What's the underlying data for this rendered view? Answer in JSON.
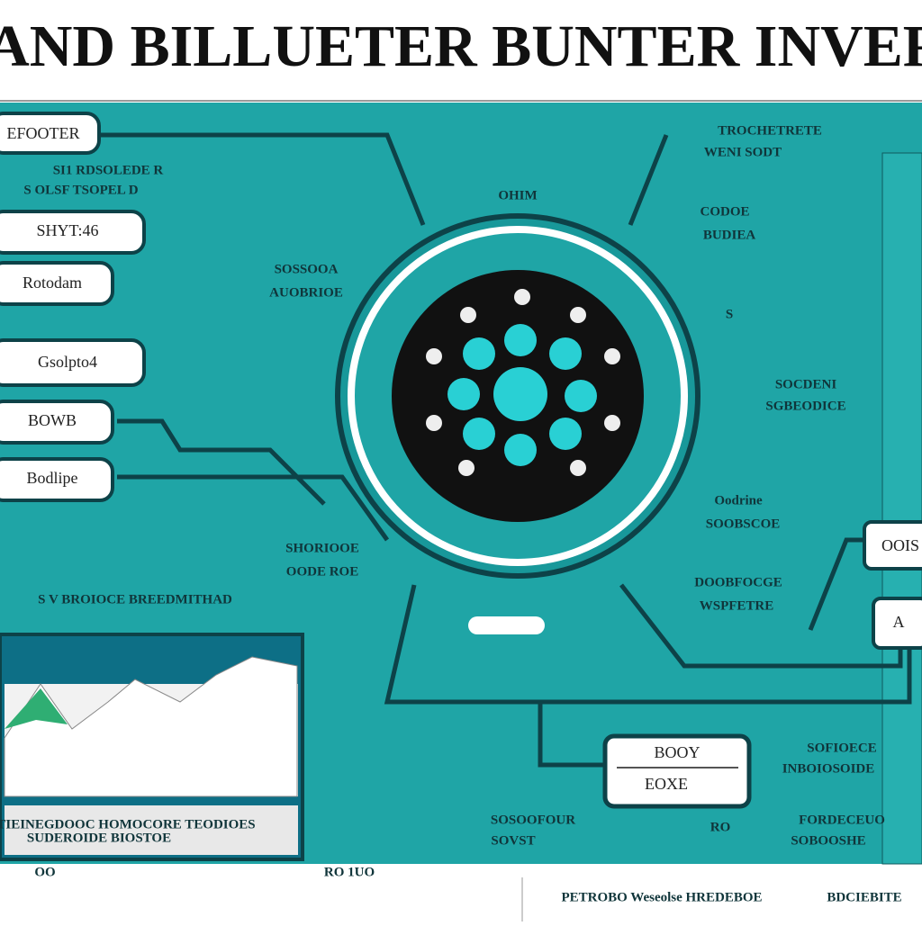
{
  "header": {
    "title": "L AND BILLUETER BUNTER INVERT"
  },
  "left_buttons": [
    "EFOOTER",
    "SHYT:46",
    "Rotodam",
    "Gsolpto4",
    "BOWB",
    "Bodlipe"
  ],
  "labels": [
    "SI1 RDSOLEDE R",
    "S OLSF TSOPEL D",
    "SOSSOOA",
    "AUOBRIOE",
    "OHIM",
    "TROCHETRETE",
    "WENI SODT",
    "CODOE",
    "BUDIEA",
    "S",
    "SOCDENI",
    "SGBEODICE",
    "Oodrine",
    "SOOBSCOE",
    "SHORIOOE",
    "OODE ROE",
    "DOOBFOCGE",
    "WSPFETRE",
    "S V BROIOCE   BREEDMITHAD",
    "SOSOOFOUR",
    "SOVST",
    "RO",
    "SOFIOECE",
    "INBOIOSOIDE",
    "FORDECEUO",
    "SOBOOSHE"
  ],
  "chart_caption": [
    "TIEINEGDOOC HOMOCORE TEODIOES",
    "SUDEROIDE BIOSTOE"
  ],
  "right_buttons": [
    "OOIS",
    "A"
  ],
  "bottom_box": [
    "BOOY",
    "EOXE"
  ],
  "footer": [
    "OO",
    "RO 1UO",
    "PETROBO Weseolse HREDEBOE",
    "BDCIEBITE"
  ]
}
